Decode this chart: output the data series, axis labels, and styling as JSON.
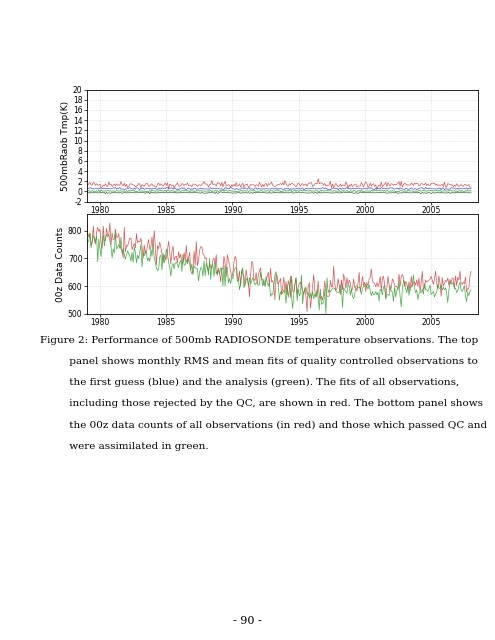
{
  "fig_width": 4.95,
  "fig_height": 6.4,
  "dpi": 100,
  "top_panel": {
    "ylabel": "500mbRaob Tmp(K)",
    "xlim": [
      1979,
      2008.5
    ],
    "ylim": [
      -2,
      20
    ],
    "yticks": [
      -2,
      0,
      2,
      4,
      6,
      8,
      10,
      12,
      14,
      16,
      18,
      20
    ],
    "xticks": [
      1980,
      1985,
      1990,
      1995,
      2000,
      2005
    ],
    "xticklabels": [
      "1980",
      "1985",
      "1990",
      "1995",
      "2000",
      "2005"
    ],
    "red_mean": 1.3,
    "red_noise": 0.3,
    "blue_mean": 0.55,
    "blue_noise": 0.1,
    "green_mean": 0.1,
    "green_noise": 0.08,
    "green2_mean": -0.25,
    "green2_noise": 0.07
  },
  "bottom_panel": {
    "ylabel": "00z Data Counts",
    "xlim": [
      1979,
      2008.5
    ],
    "ylim": [
      500,
      860
    ],
    "yticks": [
      500,
      600,
      700,
      800
    ],
    "xticks": [
      1980,
      1985,
      1990,
      1995,
      2000,
      2005
    ],
    "xticklabels": [
      "1980",
      "1985",
      "1990",
      "1995",
      "2000",
      "2005"
    ]
  },
  "page_number": "- 90 -",
  "colors": {
    "red": "#d04040",
    "blue": "#4040d0",
    "green": "#30a030",
    "darkgreen": "#206020",
    "grid": "#c0c0c0",
    "background": "#ffffff",
    "panel_bg": "#ffffff"
  },
  "font_size_ticks": 5.5,
  "font_size_ylabel": 6.5,
  "font_size_caption": 7.5,
  "font_size_page": 8,
  "caption_fig_label": "Figure 2:",
  "caption_lines": [
    "Performance of 500mb RADIOSONDE temperature observations. The top",
    "panel shows monthly RMS and mean fits of quality controlled observations to",
    "the first guess (blue) and the analysis (green). The fits of all observations,",
    "including those rejected by the QC, are shown in red. The bottom panel shows",
    "the 00z data counts of all observations (in red) and those which passed QC and",
    "were assimilated in green."
  ]
}
